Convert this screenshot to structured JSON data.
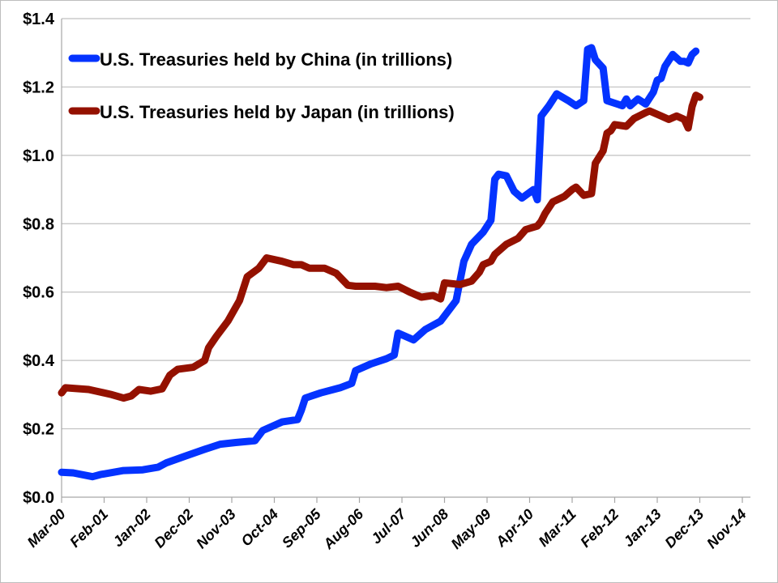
{
  "chart_data": {
    "type": "line",
    "title": "",
    "xlabel": "",
    "ylabel": "",
    "ylim": [
      0,
      1.4
    ],
    "y_ticks": [
      "$0.0",
      "$0.2",
      "$0.4",
      "$0.6",
      "$0.8",
      "$1.0",
      "$1.2",
      "$1.4"
    ],
    "x_ticks": [
      "Mar-00",
      "Feb-01",
      "Jan-02",
      "Dec-02",
      "Nov-03",
      "Oct-04",
      "Sep-05",
      "Aug-06",
      "Jul-07",
      "Jun-08",
      "May-09",
      "Apr-10",
      "Mar-11",
      "Feb-12",
      "Jan-13",
      "Dec-13",
      "Nov-14"
    ],
    "x_range": [
      "2000-03",
      "2014-11"
    ],
    "grid": "horizontal",
    "legend_position": "top-left",
    "series": [
      {
        "name": "U.S. Treasuries held by China (in trillions)",
        "color": "#0433ff",
        "x": [
          "2000-03",
          "2000-06",
          "2000-11",
          "2001-01",
          "2001-07",
          "2001-12",
          "2002-04",
          "2002-06",
          "2002-11",
          "2003-04",
          "2003-08",
          "2003-12",
          "2004-05",
          "2004-07",
          "2004-12",
          "2005-04",
          "2005-05",
          "2005-06",
          "2005-10",
          "2006-03",
          "2006-06",
          "2006-07",
          "2006-11",
          "2007-03",
          "2007-05",
          "2007-06",
          "2007-10",
          "2008-01",
          "2008-05",
          "2008-09",
          "2008-11",
          "2009-01",
          "2009-04",
          "2009-06",
          "2009-07",
          "2009-08",
          "2009-10",
          "2009-12",
          "2010-02",
          "2010-05",
          "2010-06",
          "2010-07",
          "2010-09",
          "2010-11",
          "2011-02",
          "2011-04",
          "2011-06",
          "2011-07",
          "2011-08",
          "2011-09",
          "2011-11",
          "2011-12",
          "2012-04",
          "2012-05",
          "2012-06",
          "2012-08",
          "2012-10",
          "2012-12",
          "2013-01",
          "2013-02",
          "2013-03",
          "2013-05",
          "2013-07",
          "2013-08",
          "2013-09",
          "2013-10",
          "2013-11"
        ],
        "values": [
          0.073,
          0.071,
          0.06,
          0.066,
          0.078,
          0.08,
          0.088,
          0.1,
          0.12,
          0.14,
          0.155,
          0.16,
          0.165,
          0.195,
          0.22,
          0.227,
          0.255,
          0.29,
          0.305,
          0.32,
          0.333,
          0.37,
          0.39,
          0.405,
          0.416,
          0.48,
          0.46,
          0.49,
          0.515,
          0.575,
          0.69,
          0.74,
          0.775,
          0.81,
          0.93,
          0.945,
          0.94,
          0.895,
          0.875,
          0.9,
          0.87,
          1.115,
          1.145,
          1.18,
          1.16,
          1.145,
          1.16,
          1.31,
          1.315,
          1.28,
          1.255,
          1.16,
          1.145,
          1.165,
          1.145,
          1.165,
          1.15,
          1.185,
          1.22,
          1.225,
          1.26,
          1.295,
          1.275,
          1.275,
          1.27,
          1.295,
          1.305
        ]
      },
      {
        "name": "U.S. Treasuries held by Japan (in trillions)",
        "color": "#941100",
        "x": [
          "2000-03",
          "2000-04",
          "2000-10",
          "2000-12",
          "2001-04",
          "2001-07",
          "2001-09",
          "2001-11",
          "2002-02",
          "2002-05",
          "2002-07",
          "2002-09",
          "2003-01",
          "2003-04",
          "2003-05",
          "2003-07",
          "2003-10",
          "2004-01",
          "2004-03",
          "2004-06",
          "2004-08",
          "2004-12",
          "2005-03",
          "2005-05",
          "2005-07",
          "2005-11",
          "2006-02",
          "2006-05",
          "2006-07",
          "2006-12",
          "2007-03",
          "2007-06",
          "2007-09",
          "2007-12",
          "2008-03",
          "2008-05",
          "2008-06",
          "2008-10",
          "2009-01",
          "2009-03",
          "2009-04",
          "2009-06",
          "2009-07",
          "2009-10",
          "2010-01",
          "2010-03",
          "2010-06",
          "2010-07",
          "2010-08",
          "2010-10",
          "2011-01",
          "2011-03",
          "2011-04",
          "2011-06",
          "2011-08",
          "2011-09",
          "2011-11",
          "2011-12",
          "2012-01",
          "2012-02",
          "2012-05",
          "2012-07",
          "2012-10",
          "2012-11",
          "2013-02",
          "2013-04",
          "2013-06",
          "2013-08",
          "2013-09",
          "2013-10",
          "2013-11",
          "2013-12"
        ],
        "values": [
          0.305,
          0.32,
          0.315,
          0.31,
          0.3,
          0.29,
          0.296,
          0.315,
          0.31,
          0.317,
          0.357,
          0.374,
          0.38,
          0.4,
          0.437,
          0.47,
          0.515,
          0.575,
          0.645,
          0.67,
          0.7,
          0.69,
          0.68,
          0.68,
          0.67,
          0.67,
          0.655,
          0.62,
          0.617,
          0.617,
          0.613,
          0.617,
          0.6,
          0.585,
          0.59,
          0.58,
          0.627,
          0.622,
          0.632,
          0.658,
          0.68,
          0.69,
          0.71,
          0.74,
          0.757,
          0.783,
          0.793,
          0.807,
          0.83,
          0.864,
          0.88,
          0.9,
          0.907,
          0.883,
          0.888,
          0.977,
          1.013,
          1.065,
          1.072,
          1.09,
          1.085,
          1.108,
          1.125,
          1.13,
          1.115,
          1.105,
          1.115,
          1.105,
          1.08,
          1.143,
          1.176,
          1.17
        ]
      }
    ]
  }
}
